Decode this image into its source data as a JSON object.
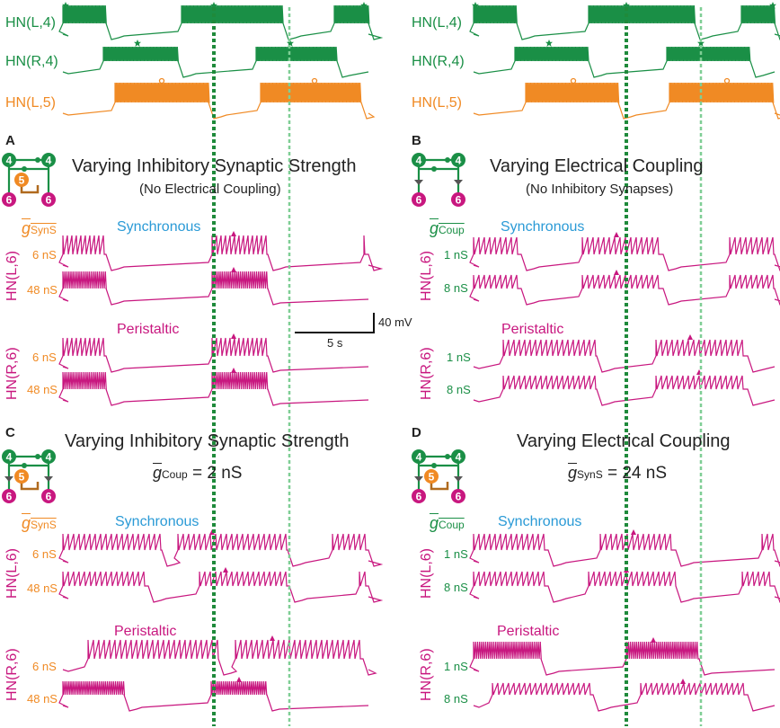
{
  "colors": {
    "green": "#1a8f46",
    "orange": "#f08a24",
    "magenta": "#c8177f",
    "blue": "#2a9ad6",
    "dark_green_line": "#1f8a3b",
    "light_green_line": "#7fce95"
  },
  "top_traces": {
    "left": {
      "labels": [
        "HN(L,4)",
        "HN(R,4)",
        "HN(L,5)"
      ]
    },
    "right": {
      "labels": [
        "HN(L,4)",
        "HN(R,4)",
        "HN(L,5)"
      ]
    }
  },
  "panels": {
    "A": {
      "letter": "A",
      "title": "Varying Inhibitory Synaptic Strength",
      "subtitle": "(No Electrical Coupling)",
      "param_symbol": "g",
      "param_sub": "SynS",
      "mode1": "Synchronous",
      "mode2": "Peristaltic",
      "cell1": "HN(L,6)",
      "cell2": "HN(R,6)",
      "rows": [
        "6 nS",
        "48 nS",
        "6 nS",
        "48 nS"
      ]
    },
    "B": {
      "letter": "B",
      "title": "Varying Electrical Coupling",
      "subtitle": "(No Inhibitory Synapses)",
      "param_symbol": "g",
      "param_sub": "Coup",
      "mode1": "Synchronous",
      "mode2": "Peristaltic",
      "cell1": "HN(L,6)",
      "cell2": "HN(R,6)",
      "rows": [
        "1 nS",
        "8 nS",
        "1 nS",
        "8 nS"
      ]
    },
    "C": {
      "letter": "C",
      "title": "Varying Inhibitory Synaptic Strength",
      "eq_symbol": "g",
      "eq_sub": "Coup",
      "eq_value": "= 2 nS",
      "param_symbol": "g",
      "param_sub": "SynS",
      "mode1": "Synchronous",
      "mode2": "Peristaltic",
      "cell1": "HN(L,6)",
      "cell2": "HN(R,6)",
      "rows": [
        "6 nS",
        "48 nS",
        "6 nS",
        "48 nS"
      ]
    },
    "D": {
      "letter": "D",
      "title": "Varying Electrical Coupling",
      "eq_symbol": "g",
      "eq_sub": "SynS",
      "eq_value": "= 24 nS",
      "param_symbol": "g",
      "param_sub": "Coup",
      "mode1": "Synchronous",
      "mode2": "Peristaltic",
      "cell1": "HN(L,6)",
      "cell2": "HN(R,6)",
      "rows": [
        "1 nS",
        "8 nS",
        "1 nS",
        "8 nS"
      ]
    }
  },
  "scale_bar": {
    "voltage": "40 mV",
    "time": "5 s"
  },
  "circuit_nodes": {
    "top": "4",
    "mid": "5",
    "bottom": "6"
  }
}
